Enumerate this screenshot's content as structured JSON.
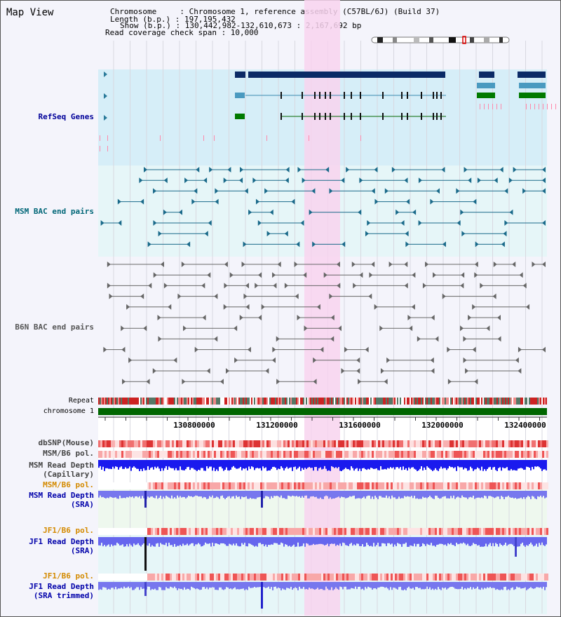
{
  "view_title": "Map View",
  "info": {
    "chromosome": "Chromosome     : Chromosome 1, reference assembly (C57BL/6J) (Build 37)",
    "length": "Length (b.p.) : 197,195,432",
    "show": "Show (b.p.) : 130,442,982-132,610,673 : 2,167,692 bp",
    "coverage": "Read coverage check span : 10,000"
  },
  "colors": {
    "refseq_bg": "#d6eef8",
    "msm_bg": "#e6f6f8",
    "b6n_bg": "#f4f4fb",
    "highlight": "#f8d4ef",
    "refseq_label": "#000099",
    "msm_label": "#006677",
    "b6n_label": "#555555",
    "pol_label": "#d48a00",
    "depth_label": "#0000aa",
    "chromosome_bar": "#006600"
  },
  "tracks": {
    "refseq": "RefSeq Genes",
    "msm_bac": "MSM BAC end pairs",
    "b6n_bac": "B6N BAC end pairs",
    "repeat": "Repeat",
    "chromosome": "chromosome 1"
  },
  "axis": {
    "ticks": [
      "130800000",
      "131200000",
      "131600000",
      "132000000",
      "132400000"
    ]
  },
  "bottom_tracks": {
    "dbsnp": "dbSNP(Mouse)",
    "msm_b6_pol_1": "MSM/B6 pol.",
    "msm_read_depth_cap_1": "MSM Read Depth",
    "msm_read_depth_cap_2": "(Capillary)",
    "msm_b6_pol_2": "MSM/B6 pol.",
    "msm_read_depth_sra_1": "MSM Read Depth",
    "msm_read_depth_sra_2": "(SRA)",
    "jf1_b6_pol_1": "JF1/B6 pol.",
    "jf1_read_depth_sra_1": "JF1 Read Depth",
    "jf1_read_depth_sra_2": "(SRA)",
    "jf1_b6_pol_2": "JF1/B6 pol.",
    "jf1_read_depth_trim_1": "JF1 Read Depth",
    "jf1_read_depth_trim_2": "(SRA trimmed)"
  }
}
